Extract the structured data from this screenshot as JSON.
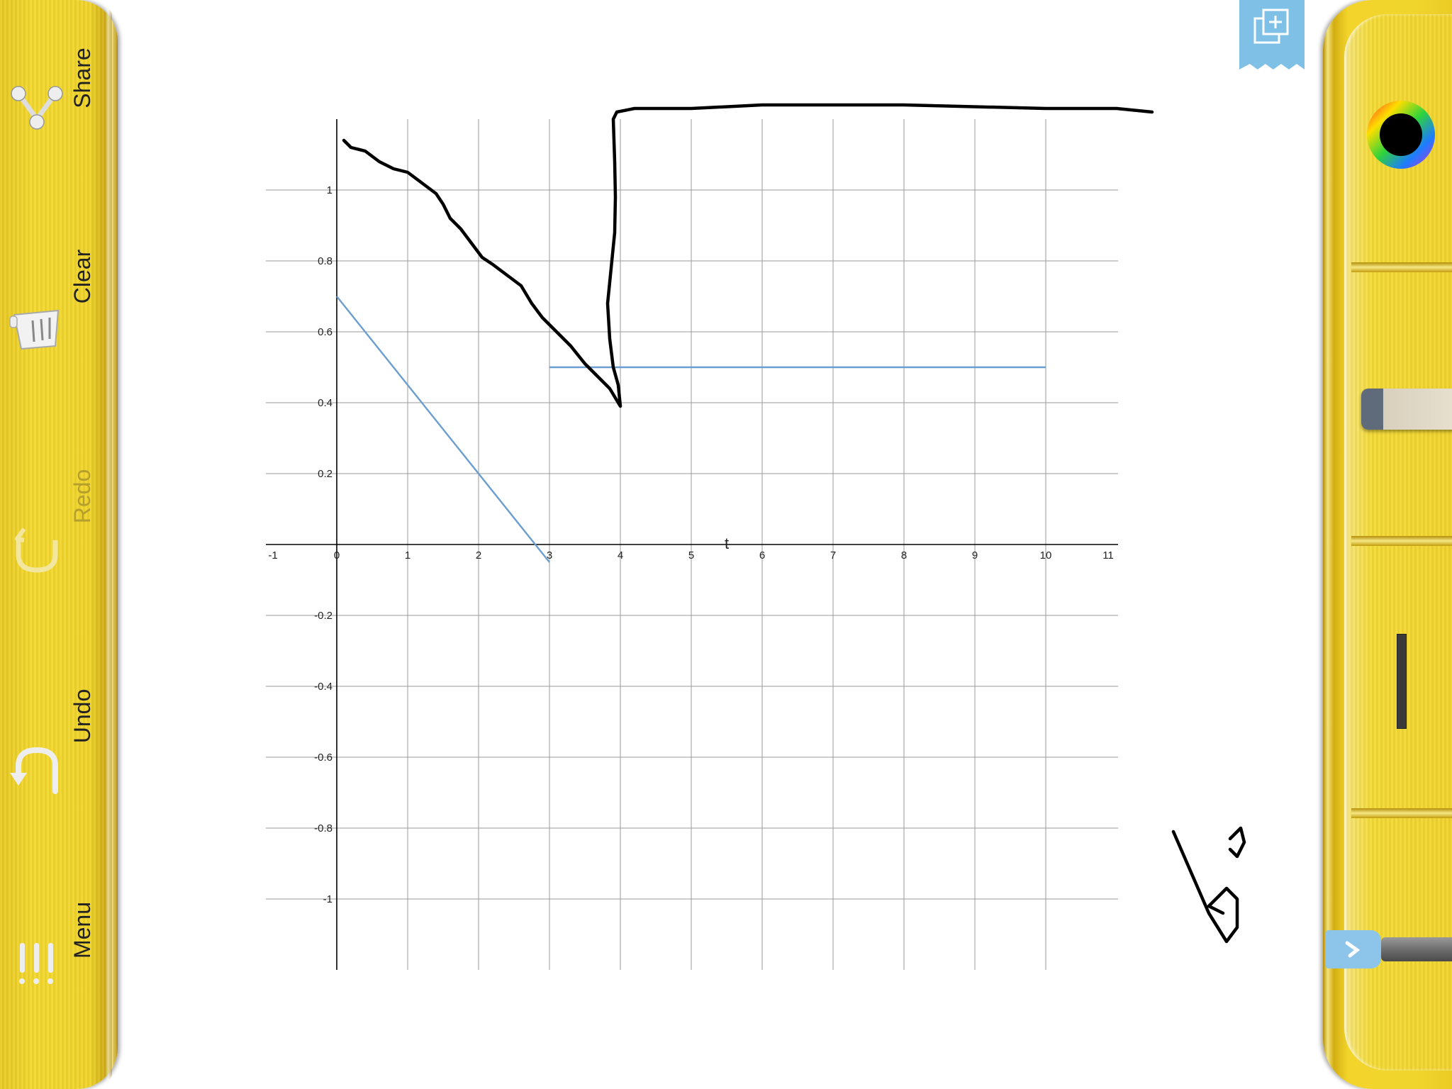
{
  "left_toolbar": {
    "share_label": "Share",
    "clear_label": "Clear",
    "redo_label": "Redo",
    "undo_label": "Undo",
    "menu_label": "Menu"
  },
  "right_toolbar": {
    "tools": [
      "color-wheel",
      "eraser",
      "line-width",
      "pen"
    ],
    "current_color": "#000000"
  },
  "chart_data": {
    "type": "line",
    "xlabel": "t",
    "ylabel": "",
    "xlim": [
      -1,
      11
    ],
    "ylim": [
      -1.2,
      1.2
    ],
    "x_ticks": [
      "-1",
      "0",
      "1",
      "2",
      "3",
      "4",
      "5",
      "6",
      "7",
      "8",
      "9",
      "10",
      "11"
    ],
    "y_ticks": [
      "1",
      "0.8",
      "0.6",
      "0.4",
      "0.2",
      "-0.2",
      "-0.4",
      "-0.6",
      "-0.8",
      "-1"
    ],
    "grid": true,
    "series": [
      {
        "color": "#6a9ed0",
        "points": [
          [
            0,
            0.7
          ],
          [
            3,
            -0.05
          ]
        ]
      },
      {
        "color": "#6a9ed0",
        "points": [
          [
            3,
            0.5
          ],
          [
            10,
            0.5
          ]
        ]
      }
    ],
    "ink_strokes": [
      {
        "color": "#000000",
        "points": [
          [
            0.1,
            1.14
          ],
          [
            0.2,
            1.12
          ],
          [
            0.4,
            1.11
          ],
          [
            0.6,
            1.08
          ],
          [
            0.8,
            1.06
          ],
          [
            1.0,
            1.05
          ],
          [
            1.2,
            1.02
          ],
          [
            1.4,
            0.99
          ],
          [
            1.5,
            0.96
          ],
          [
            1.6,
            0.92
          ],
          [
            1.75,
            0.89
          ],
          [
            1.9,
            0.85
          ],
          [
            2.05,
            0.81
          ],
          [
            2.2,
            0.79
          ],
          [
            2.4,
            0.76
          ],
          [
            2.6,
            0.73
          ],
          [
            2.75,
            0.68
          ],
          [
            2.9,
            0.64
          ],
          [
            3.1,
            0.6
          ],
          [
            3.3,
            0.56
          ],
          [
            3.5,
            0.51
          ],
          [
            3.7,
            0.47
          ],
          [
            3.85,
            0.44
          ],
          [
            4.0,
            0.39
          ],
          [
            3.97,
            0.45
          ],
          [
            3.9,
            0.5
          ],
          [
            3.85,
            0.58
          ],
          [
            3.82,
            0.68
          ],
          [
            3.87,
            0.78
          ],
          [
            3.92,
            0.88
          ],
          [
            3.93,
            0.98
          ],
          [
            3.92,
            1.08
          ],
          [
            3.9,
            1.2
          ],
          [
            3.95,
            1.22
          ],
          [
            4.2,
            1.23
          ],
          [
            5.0,
            1.23
          ],
          [
            6.0,
            1.24
          ],
          [
            8.0,
            1.24
          ],
          [
            10.0,
            1.23
          ],
          [
            11.0,
            1.23
          ],
          [
            11.5,
            1.22
          ]
        ]
      },
      {
        "color": "#000000",
        "points": [
          [
            11.8,
            -0.81
          ],
          [
            12.3,
            -1.04
          ],
          [
            12.55,
            -1.12
          ],
          [
            12.7,
            -1.08
          ],
          [
            12.7,
            -1.0
          ],
          [
            12.55,
            -0.97
          ],
          [
            12.3,
            -1.02
          ],
          [
            12.5,
            -1.04
          ]
        ]
      },
      {
        "color": "#000000",
        "points": [
          [
            12.6,
            -0.83
          ],
          [
            12.75,
            -0.8
          ],
          [
            12.8,
            -0.84
          ],
          [
            12.7,
            -0.88
          ],
          [
            12.6,
            -0.86
          ]
        ]
      }
    ]
  }
}
